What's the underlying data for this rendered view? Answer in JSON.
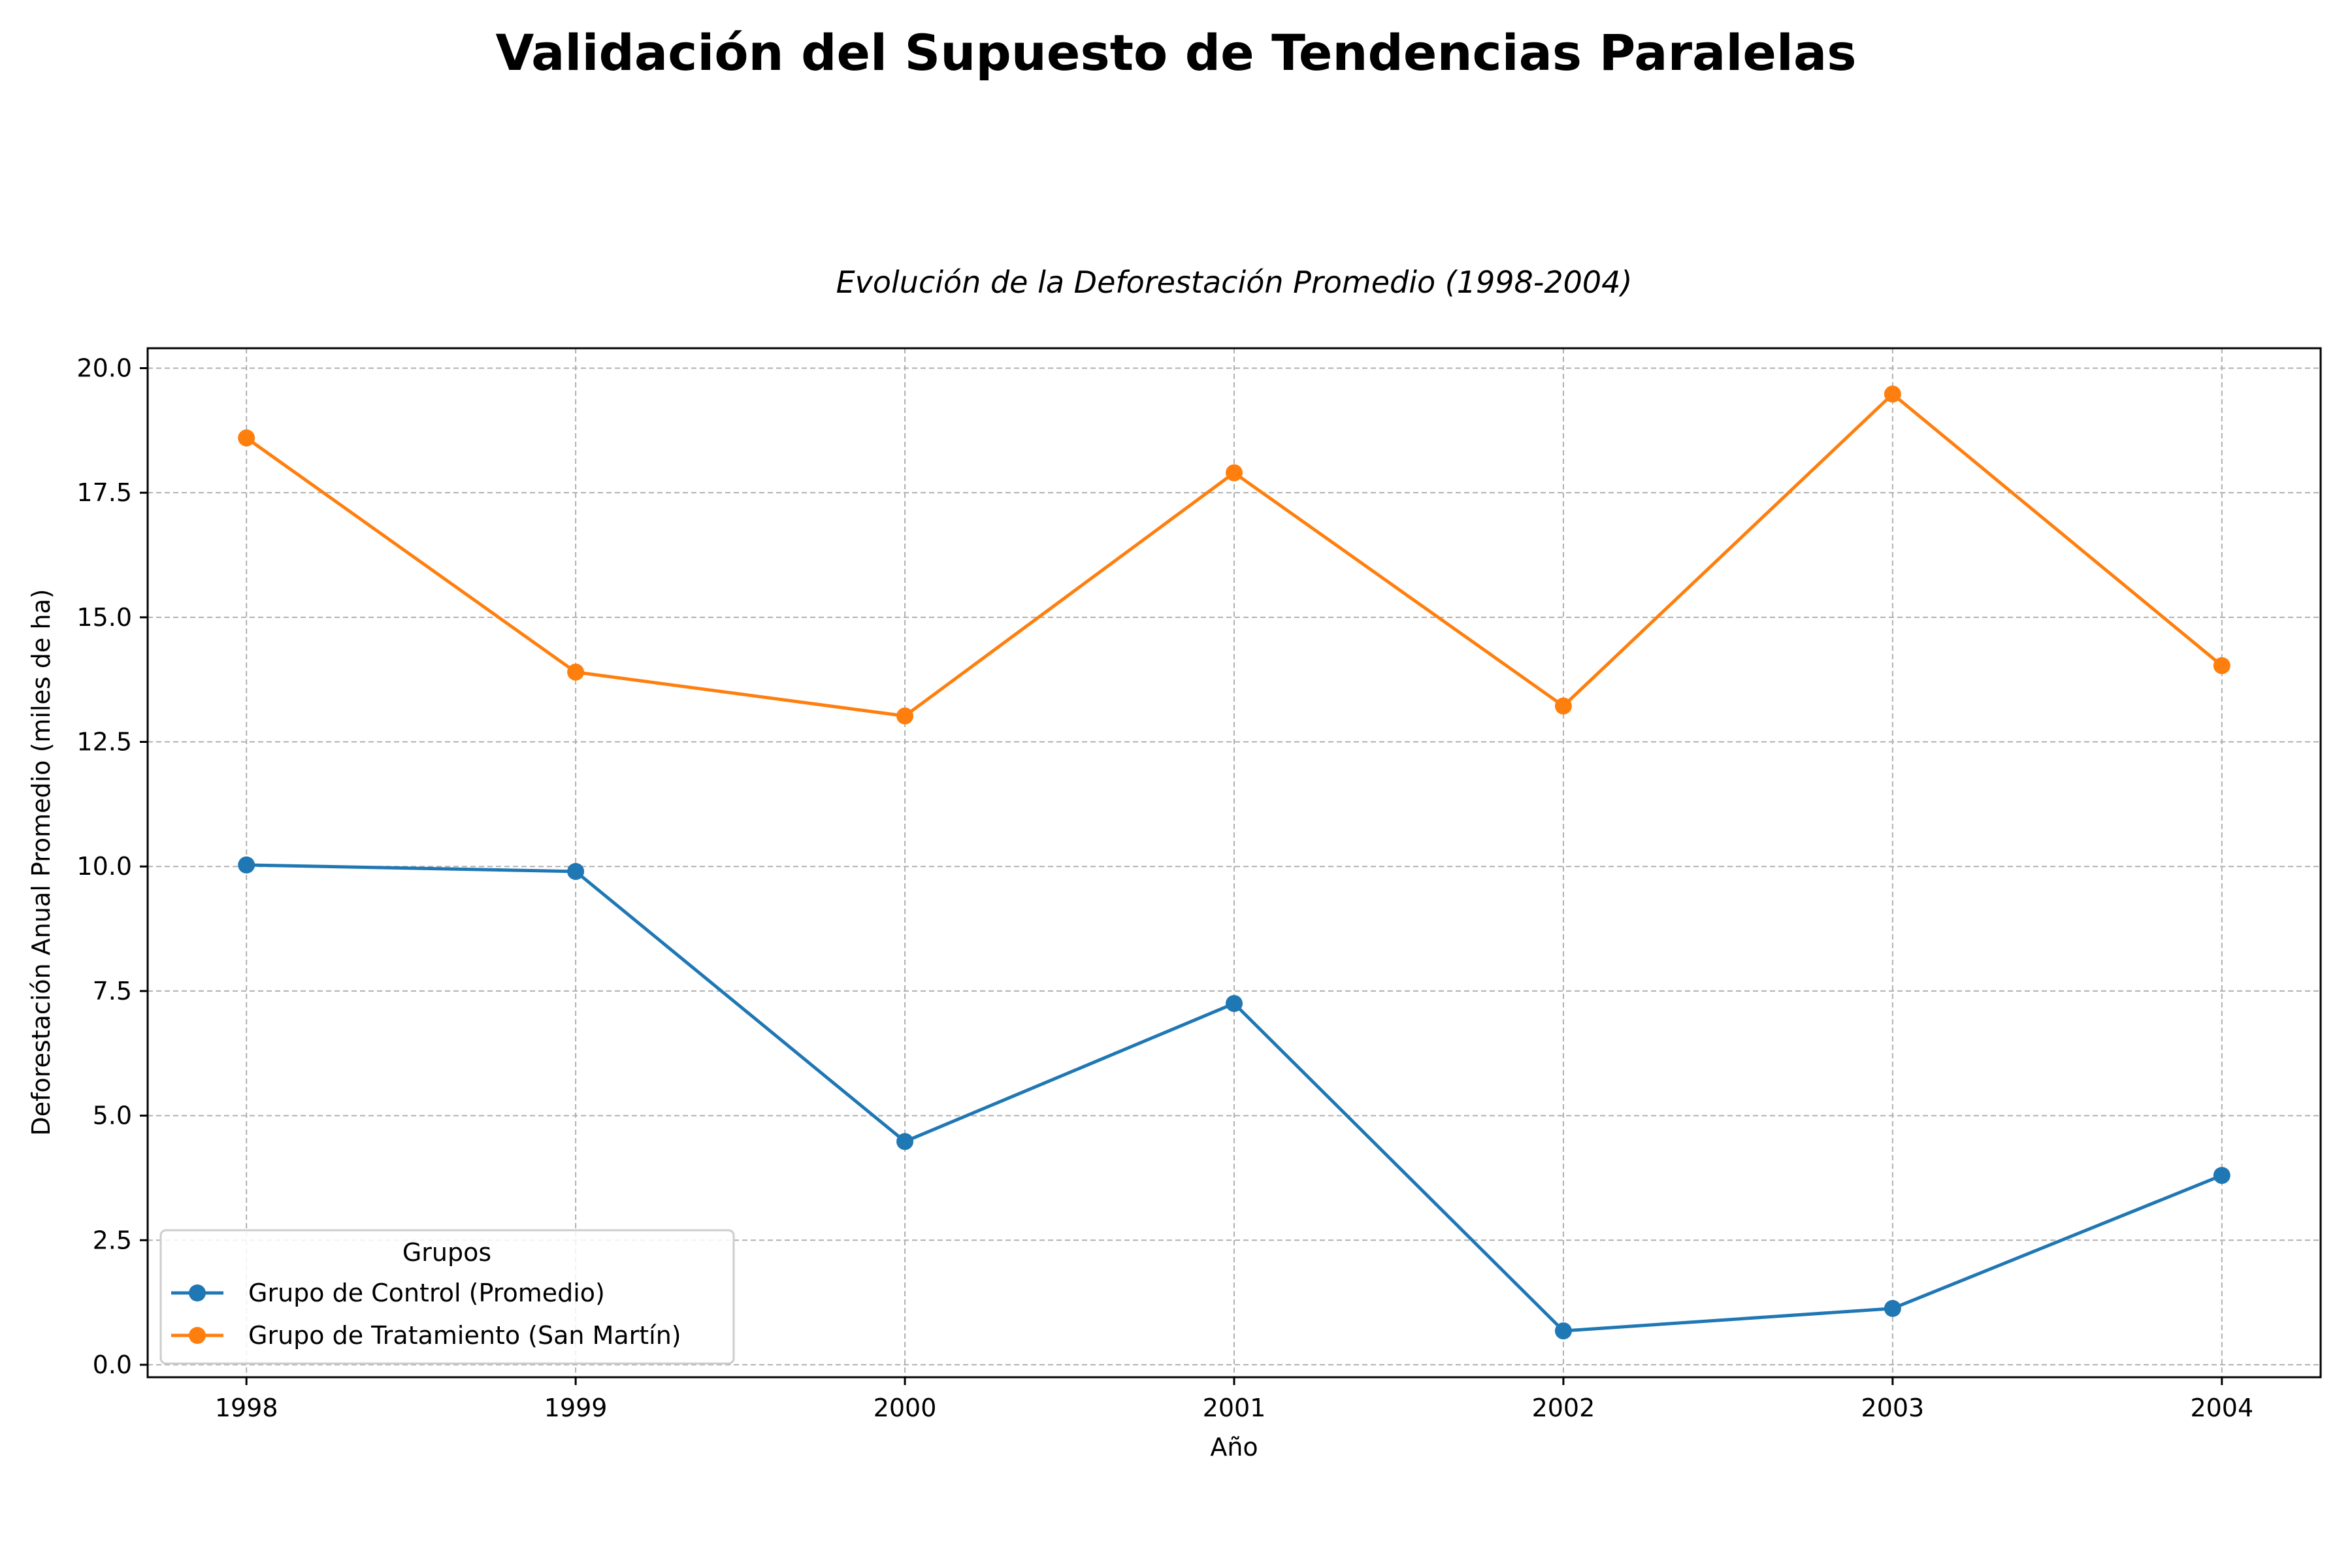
{
  "page_title": "Validación del Supuesto de Tendencias Paralelas",
  "chart_data": {
    "type": "line",
    "title": "Evolución de la Deforestación Promedio (1998-2004)",
    "xlabel": "Año",
    "ylabel": "Deforestación Anual Promedio (miles de ha)",
    "x": [
      1998,
      1999,
      2000,
      2001,
      2002,
      2003,
      2004
    ],
    "x_tick_labels": [
      "1998",
      "1999",
      "2000",
      "2001",
      "2002",
      "2003",
      "2004"
    ],
    "y_ticks": [
      "0.0",
      "2.5",
      "5.0",
      "7.5",
      "10.0",
      "12.5",
      "15.0",
      "17.5",
      "20.0"
    ],
    "xlim": [
      1997.7,
      2004.3
    ],
    "ylim": [
      -0.25,
      20.4
    ],
    "grid": true,
    "legend": {
      "title": "Grupos",
      "placement": "lower-left"
    },
    "series": [
      {
        "name": "Grupo de Control (Promedio)",
        "color": "#1f77b4",
        "values": [
          10.03,
          9.9,
          4.48,
          7.25,
          0.68,
          1.13,
          3.8
        ]
      },
      {
        "name": "Grupo de Tratamiento (San Martín)",
        "color": "#ff7f0e",
        "values": [
          18.6,
          13.9,
          13.02,
          17.9,
          13.22,
          19.48,
          14.03
        ]
      }
    ]
  }
}
